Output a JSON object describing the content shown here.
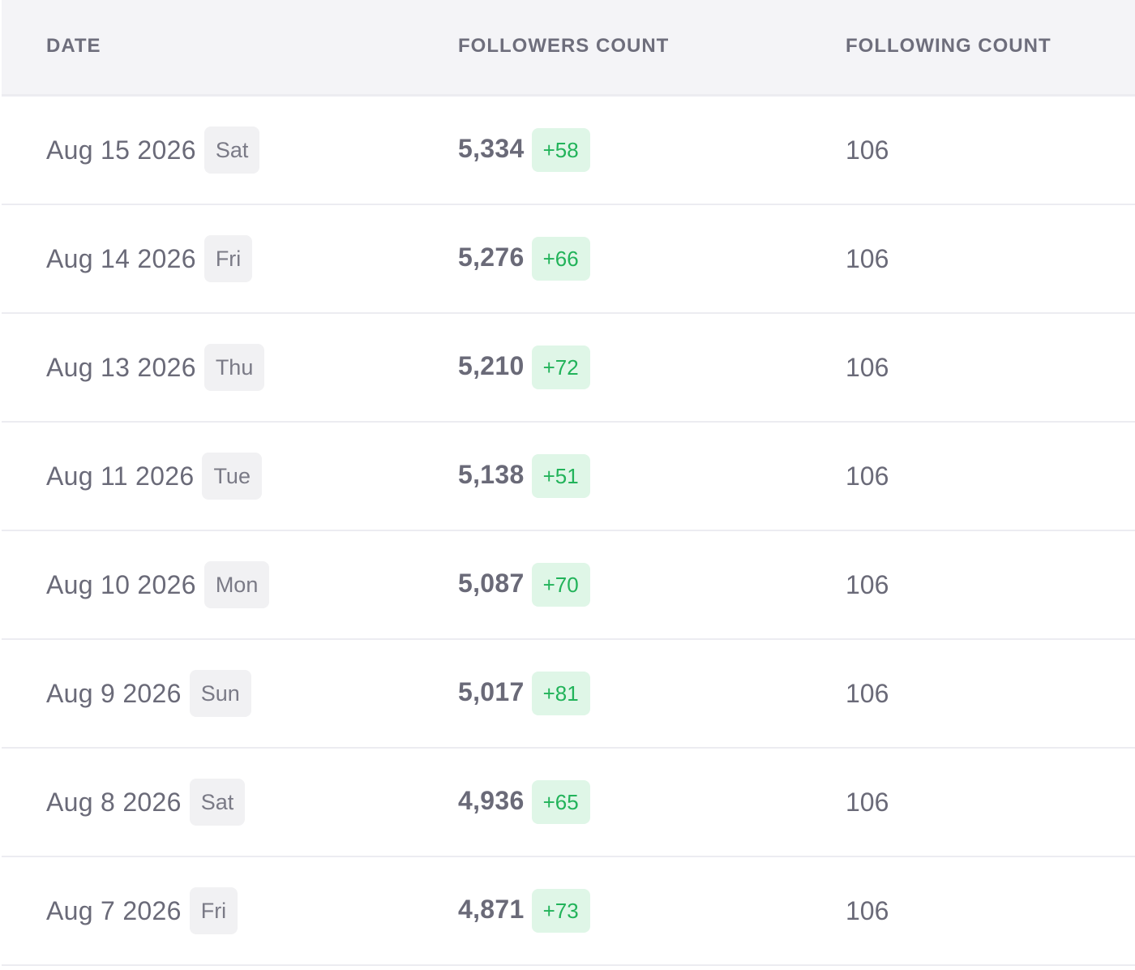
{
  "table": {
    "headers": {
      "date": "DATE",
      "followers": "FOLLOWERS COUNT",
      "following": "FOLLOWING COUNT"
    },
    "rows": [
      {
        "date": "Aug 15 2026",
        "day": "Sat",
        "followers": "5,334",
        "delta": "+58",
        "following": "106"
      },
      {
        "date": "Aug 14 2026",
        "day": "Fri",
        "followers": "5,276",
        "delta": "+66",
        "following": "106"
      },
      {
        "date": "Aug 13 2026",
        "day": "Thu",
        "followers": "5,210",
        "delta": "+72",
        "following": "106"
      },
      {
        "date": "Aug 11 2026",
        "day": "Tue",
        "followers": "5,138",
        "delta": "+51",
        "following": "106"
      },
      {
        "date": "Aug 10 2026",
        "day": "Mon",
        "followers": "5,087",
        "delta": "+70",
        "following": "106"
      },
      {
        "date": "Aug 9 2026",
        "day": "Sun",
        "followers": "5,017",
        "delta": "+81",
        "following": "106"
      },
      {
        "date": "Aug 8 2026",
        "day": "Sat",
        "followers": "4,936",
        "delta": "+65",
        "following": "106"
      },
      {
        "date": "Aug 7 2026",
        "day": "Fri",
        "followers": "4,871",
        "delta": "+73",
        "following": "106"
      }
    ]
  },
  "colors": {
    "header_bg": "#f4f4f7",
    "delta_bg": "#dff6e7",
    "delta_text": "#22b35a",
    "day_badge_bg": "#f1f1f3"
  }
}
